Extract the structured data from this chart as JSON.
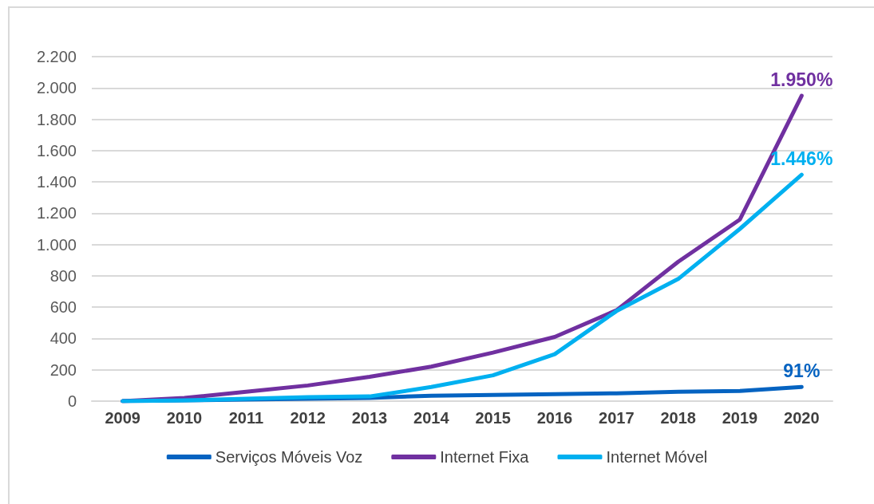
{
  "chart_data": {
    "type": "line",
    "categories": [
      "2009",
      "2010",
      "2011",
      "2012",
      "2013",
      "2014",
      "2015",
      "2016",
      "2017",
      "2018",
      "2019",
      "2020"
    ],
    "series": [
      {
        "name": "Serviços Móveis Voz",
        "color": "#0563c1",
        "values": [
          0,
          5,
          10,
          15,
          20,
          35,
          40,
          45,
          50,
          60,
          65,
          91
        ],
        "value_labels": [
          null,
          null,
          null,
          null,
          null,
          null,
          null,
          null,
          null,
          null,
          null,
          "91%"
        ]
      },
      {
        "name": "Internet Fixa",
        "color": "#7030a0",
        "values": [
          0,
          20,
          60,
          100,
          155,
          220,
          310,
          410,
          580,
          890,
          1160,
          1950
        ],
        "value_labels": [
          null,
          null,
          null,
          null,
          null,
          null,
          null,
          null,
          null,
          null,
          null,
          "1.950%"
        ]
      },
      {
        "name": "Internet Móvel",
        "color": "#00b0f0",
        "values": [
          0,
          5,
          15,
          25,
          30,
          90,
          165,
          300,
          575,
          780,
          1100,
          1446
        ],
        "value_labels": [
          null,
          null,
          null,
          null,
          null,
          null,
          null,
          null,
          null,
          null,
          null,
          "1.446%"
        ]
      }
    ],
    "ylim": [
      0,
      2200
    ],
    "yticks": [
      0,
      200,
      400,
      600,
      800,
      {
        "value": 1000,
        "label": "1.000"
      },
      {
        "value": 1200,
        "label": "1.200"
      },
      {
        "value": 1400,
        "label": "1.400"
      },
      {
        "value": 1600,
        "label": "1.600"
      },
      {
        "value": 1800,
        "label": "1.800"
      },
      {
        "value": 2000,
        "label": "2.000"
      },
      {
        "value": 2200,
        "label": "2.200"
      }
    ],
    "grid": "y",
    "legend": "bottom",
    "marker": "none",
    "line_style": "solid"
  }
}
